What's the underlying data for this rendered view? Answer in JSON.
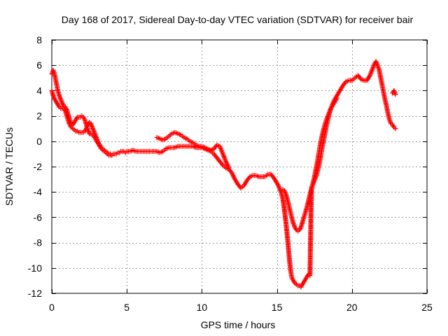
{
  "chart_data": {
    "type": "scatter",
    "title": "Day 168 of 2017, Sidereal Day-to-day VTEC variation (SDTVAR) for receiver bair",
    "xlabel": "GPS time / hours",
    "ylabel": "SDTVAR / TECUs",
    "xlim": [
      0,
      25
    ],
    "ylim": [
      -12,
      8
    ],
    "xticks": [
      0,
      5,
      10,
      15,
      20,
      25
    ],
    "yticks": [
      -12,
      -10,
      -8,
      -6,
      -4,
      -2,
      0,
      2,
      4,
      6,
      8
    ],
    "xtick_labels": [
      "0",
      "5",
      "10",
      "15",
      "20",
      "25"
    ],
    "ytick_labels": [
      "-12",
      "-10",
      "-8",
      "-6",
      "-4",
      "-2",
      "0",
      "2",
      "4",
      "6",
      "8"
    ],
    "grid": true,
    "marker": "+",
    "color": "#ff0000",
    "series": [
      {
        "x": [
          0.0,
          0.1,
          0.2,
          0.3,
          0.4,
          0.5,
          0.6,
          0.7,
          0.8,
          0.9,
          1.0,
          1.1,
          1.2,
          1.3,
          1.4,
          1.5,
          1.6,
          1.7,
          1.8,
          1.9,
          2.0,
          2.1,
          2.2,
          2.3,
          2.4,
          2.5,
          2.6,
          2.7,
          2.8,
          2.9,
          3.0,
          3.1,
          3.2,
          3.3,
          3.4,
          3.5,
          3.6,
          3.7,
          3.8,
          3.9,
          4.0,
          4.1,
          4.2,
          4.3,
          4.4,
          4.5,
          4.6,
          4.7,
          4.8,
          4.9,
          5.0,
          5.2,
          5.4,
          5.6,
          5.8,
          6.0,
          6.2,
          6.4,
          6.6,
          6.8,
          7.0,
          7.2,
          7.4,
          7.6,
          7.8,
          8.0,
          8.2,
          8.4,
          8.6,
          8.8,
          9.0,
          9.2,
          9.4,
          9.6,
          9.8,
          10.0,
          10.2,
          10.4,
          10.6,
          10.8,
          11.0,
          11.2,
          11.4,
          11.6,
          11.8,
          12.0,
          12.2,
          12.4,
          12.6,
          12.8,
          13.0,
          13.2,
          13.4,
          13.6,
          13.8,
          14.0,
          14.2,
          14.4,
          14.6,
          14.8,
          15.0,
          15.1,
          15.2,
          15.3,
          15.4,
          15.5,
          15.6,
          15.7,
          15.8,
          15.9,
          16.0,
          16.1,
          16.2,
          16.3,
          16.4,
          16.5,
          16.6,
          16.7,
          16.8,
          16.9,
          17.0,
          17.1,
          17.2,
          17.3,
          17.4,
          17.5,
          17.6,
          17.7,
          17.8,
          17.9,
          18.0,
          18.1,
          18.2,
          18.3,
          18.4,
          18.5,
          18.6,
          18.7,
          18.8,
          18.9,
          19.0,
          19.2,
          19.4,
          19.6,
          19.8,
          20.0,
          20.2,
          20.4,
          20.6,
          20.8,
          21.0,
          21.2,
          21.4,
          21.5,
          21.6,
          21.7,
          21.8,
          21.9,
          22.0,
          22.1,
          22.2,
          22.3,
          22.4,
          22.5,
          22.6,
          22.7,
          22.8,
          22.9
        ],
        "y": [
          5.3,
          5.6,
          5.2,
          4.6,
          4.0,
          3.6,
          3.3,
          3.0,
          2.8,
          2.7,
          2.5,
          2.1,
          1.7,
          1.4,
          1.3,
          1.5,
          1.7,
          1.9,
          1.9,
          1.9,
          2.0,
          1.9,
          1.7,
          1.3,
          0.9,
          0.6,
          0.6,
          0.5,
          0.4,
          0.2,
          0.0,
          -0.2,
          -0.4,
          -0.6,
          -0.7,
          -0.8,
          -0.9,
          -1.0,
          -1.1,
          -1.1,
          -1.1,
          -1.0,
          -1.0,
          -1.0,
          -0.9,
          -0.9,
          -0.8,
          -0.8,
          -0.8,
          -0.9,
          -0.8,
          -0.8,
          -0.7,
          -0.8,
          -0.8,
          -0.8,
          -0.8,
          -0.8,
          -0.8,
          -0.8,
          -0.8,
          -0.9,
          -0.8,
          -0.6,
          -0.5,
          -0.5,
          -0.5,
          -0.4,
          -0.4,
          -0.4,
          -0.4,
          -0.4,
          -0.4,
          -0.5,
          -0.5,
          -0.5,
          -0.6,
          -0.7,
          -0.8,
          -1.0,
          -1.3,
          -1.6,
          -1.9,
          -2.1,
          -2.2,
          -2.5,
          -3.0,
          -3.4,
          -3.7,
          -3.5,
          -3.1,
          -2.8,
          -2.7,
          -2.7,
          -2.8,
          -2.8,
          -2.8,
          -2.6,
          -2.6,
          -2.9,
          -3.3,
          -3.5,
          -3.8,
          -4.1,
          -4.6,
          -5.4,
          -6.4,
          -7.6,
          -8.9,
          -10.1,
          -10.8,
          -11.0,
          -11.2,
          -11.3,
          -11.4,
          -11.4,
          -11.5,
          -11.3,
          -11.1,
          -10.9,
          -10.7,
          -10.5,
          -10.6,
          -3.7,
          -3.4,
          -3.1,
          -2.8,
          -2.4,
          -1.9,
          -1.3,
          -0.6,
          0.0,
          0.6,
          1.2,
          1.7,
          2.2,
          2.6,
          2.9,
          3.2,
          3.4,
          3.6,
          4.0,
          4.4,
          4.7,
          4.8,
          4.8,
          5.0,
          5.2,
          4.9,
          4.8,
          4.8,
          5.2,
          5.8,
          6.1,
          6.3,
          6.0,
          5.7,
          5.1,
          4.5,
          3.9,
          3.3,
          2.8,
          2.2,
          1.7,
          1.4,
          1.3,
          1.1,
          1.0
        ]
      },
      {
        "x": [
          0.0,
          0.1,
          0.2,
          0.3,
          0.4,
          0.5,
          0.6,
          0.7,
          0.8,
          0.9,
          1.0,
          1.1,
          1.2,
          1.3,
          1.4,
          1.5,
          1.6,
          1.7,
          1.8,
          1.9,
          2.0,
          2.1,
          2.2,
          2.3,
          2.4,
          2.5,
          2.6,
          2.7,
          2.8,
          2.9,
          3.0,
          3.1,
          3.2,
          3.3,
          3.4,
          3.5,
          3.6,
          3.7,
          3.8,
          3.9,
          4.0
        ],
        "y": [
          4.0,
          3.6,
          3.3,
          3.1,
          2.9,
          2.7,
          2.6,
          2.6,
          2.6,
          2.4,
          2.0,
          1.6,
          1.3,
          1.1,
          1.0,
          0.9,
          0.8,
          0.8,
          0.7,
          0.7,
          0.7,
          0.7,
          0.8,
          1.0,
          1.3,
          1.5,
          1.4,
          1.1,
          0.8,
          0.5,
          0.2,
          -0.1,
          -0.3,
          -0.5,
          -0.6,
          -0.7,
          -0.8,
          -0.9,
          -1.0,
          -1.0,
          -1.1
        ]
      },
      {
        "x": [
          7.0,
          7.2,
          7.4,
          7.6,
          7.8,
          8.0,
          8.2,
          8.4,
          8.6,
          8.8,
          9.0,
          9.2,
          9.4,
          9.6,
          9.8,
          10.0,
          10.2,
          10.4,
          10.6,
          10.8,
          11.0,
          11.2,
          11.4,
          11.6,
          11.8
        ],
        "y": [
          0.3,
          0.2,
          0.1,
          0.2,
          0.4,
          0.6,
          0.7,
          0.6,
          0.5,
          0.3,
          0.2,
          0.0,
          -0.1,
          -0.3,
          -0.4,
          -0.4,
          -0.5,
          -0.6,
          -0.7,
          -0.6,
          -0.3,
          -0.4,
          -1.0,
          -1.6,
          -2.1
        ]
      },
      {
        "x": [
          15.4,
          15.5,
          15.6,
          15.7,
          15.8,
          15.9,
          16.0,
          16.1,
          16.2,
          16.3,
          16.4,
          16.5,
          16.6,
          16.7,
          16.8,
          16.9,
          17.0,
          17.1,
          17.2,
          17.3,
          17.4,
          17.5,
          17.6,
          17.7,
          17.8,
          17.9,
          18.0,
          18.1,
          18.2,
          18.3,
          18.4,
          18.5,
          18.6,
          18.7,
          18.8,
          18.9,
          19.0
        ],
        "y": [
          -3.8,
          -3.9,
          -4.2,
          -4.6,
          -5.1,
          -5.6,
          -6.1,
          -6.5,
          -6.8,
          -7.0,
          -7.1,
          -7.0,
          -6.8,
          -6.4,
          -6.0,
          -5.6,
          -5.2,
          -4.7,
          -4.2,
          -3.8,
          -3.3,
          -2.8,
          -2.2,
          -1.6,
          -0.9,
          -0.2,
          0.4,
          0.9,
          1.3,
          1.7,
          2.0,
          2.3,
          2.6,
          2.8,
          3.0,
          3.2,
          3.4
        ]
      },
      {
        "x": [
          22.7,
          22.8,
          22.9
        ],
        "y": [
          3.8,
          4.0,
          3.7
        ]
      }
    ]
  }
}
